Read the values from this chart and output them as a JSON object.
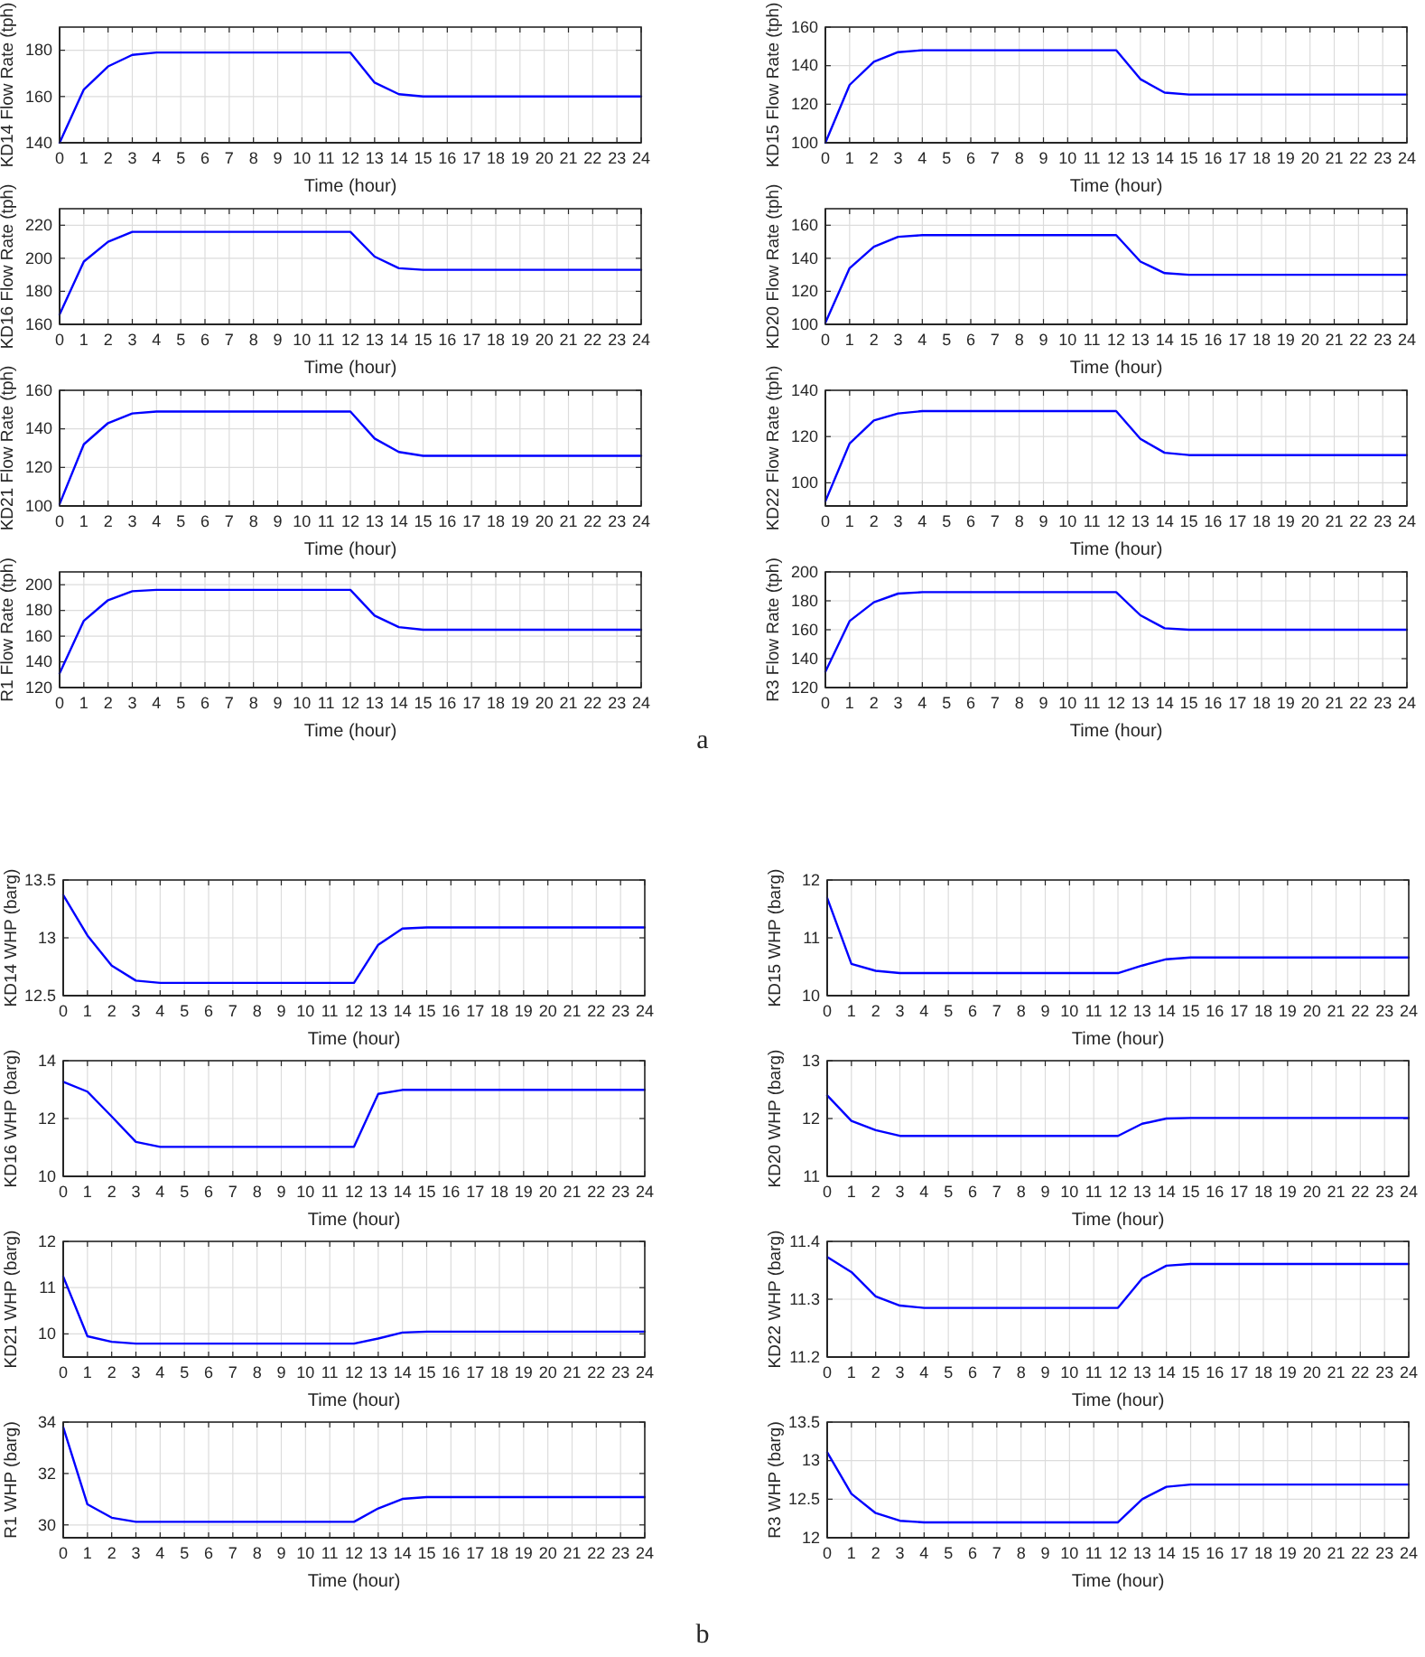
{
  "chart_data": [
    {
      "type": "line",
      "ylabel": "KD14 Flow Rate (tph)",
      "xlabel": "Time (hour)",
      "x": [
        0,
        1,
        2,
        3,
        4,
        5,
        6,
        7,
        8,
        9,
        10,
        11,
        12,
        13,
        14,
        15,
        16,
        17,
        18,
        19,
        20,
        21,
        22,
        23,
        24
      ],
      "xlim": [
        0,
        24
      ],
      "xticks": [
        0,
        1,
        2,
        3,
        4,
        5,
        6,
        7,
        8,
        9,
        10,
        11,
        12,
        13,
        14,
        15,
        16,
        17,
        18,
        19,
        20,
        21,
        22,
        23,
        24
      ],
      "ylim": [
        140,
        190
      ],
      "yticks": [
        140,
        160,
        180
      ],
      "grid": true,
      "series": [
        {
          "color": "#0000ff",
          "values": [
            140,
            163,
            173,
            178,
            179,
            179,
            179,
            179,
            179,
            179,
            179,
            179,
            179,
            166,
            161,
            160,
            160,
            160,
            160,
            160,
            160,
            160,
            160,
            160,
            160
          ]
        }
      ]
    },
    {
      "type": "line",
      "ylabel": "KD15 Flow Rate (tph)",
      "xlabel": "Time (hour)",
      "x": [
        0,
        1,
        2,
        3,
        4,
        5,
        6,
        7,
        8,
        9,
        10,
        11,
        12,
        13,
        14,
        15,
        16,
        17,
        18,
        19,
        20,
        21,
        22,
        23,
        24
      ],
      "xlim": [
        0,
        24
      ],
      "xticks": [
        0,
        1,
        2,
        3,
        4,
        5,
        6,
        7,
        8,
        9,
        10,
        11,
        12,
        13,
        14,
        15,
        16,
        17,
        18,
        19,
        20,
        21,
        22,
        23,
        24
      ],
      "ylim": [
        100,
        160
      ],
      "yticks": [
        100,
        120,
        140,
        160
      ],
      "grid": true,
      "series": [
        {
          "color": "#0000ff",
          "values": [
            100,
            130,
            142,
            147,
            148,
            148,
            148,
            148,
            148,
            148,
            148,
            148,
            148,
            133,
            126,
            125,
            125,
            125,
            125,
            125,
            125,
            125,
            125,
            125,
            125
          ]
        }
      ]
    },
    {
      "type": "line",
      "ylabel": "KD16 Flow Rate (tph)",
      "xlabel": "Time (hour)",
      "x": [
        0,
        1,
        2,
        3,
        4,
        5,
        6,
        7,
        8,
        9,
        10,
        11,
        12,
        13,
        14,
        15,
        16,
        17,
        18,
        19,
        20,
        21,
        22,
        23,
        24
      ],
      "xlim": [
        0,
        24
      ],
      "xticks": [
        0,
        1,
        2,
        3,
        4,
        5,
        6,
        7,
        8,
        9,
        10,
        11,
        12,
        13,
        14,
        15,
        16,
        17,
        18,
        19,
        20,
        21,
        22,
        23,
        24
      ],
      "ylim": [
        160,
        230
      ],
      "yticks": [
        160,
        180,
        200,
        220
      ],
      "grid": true,
      "series": [
        {
          "color": "#0000ff",
          "values": [
            166,
            198,
            210,
            216,
            216,
            216,
            216,
            216,
            216,
            216,
            216,
            216,
            216,
            201,
            194,
            193,
            193,
            193,
            193,
            193,
            193,
            193,
            193,
            193,
            193
          ]
        }
      ]
    },
    {
      "type": "line",
      "ylabel": "KD20 Flow Rate (tph)",
      "xlabel": "Time (hour)",
      "x": [
        0,
        1,
        2,
        3,
        4,
        5,
        6,
        7,
        8,
        9,
        10,
        11,
        12,
        13,
        14,
        15,
        16,
        17,
        18,
        19,
        20,
        21,
        22,
        23,
        24
      ],
      "xlim": [
        0,
        24
      ],
      "xticks": [
        0,
        1,
        2,
        3,
        4,
        5,
        6,
        7,
        8,
        9,
        10,
        11,
        12,
        13,
        14,
        15,
        16,
        17,
        18,
        19,
        20,
        21,
        22,
        23,
        24
      ],
      "ylim": [
        100,
        170
      ],
      "yticks": [
        100,
        120,
        140,
        160
      ],
      "grid": true,
      "series": [
        {
          "color": "#0000ff",
          "values": [
            101,
            134,
            147,
            153,
            154,
            154,
            154,
            154,
            154,
            154,
            154,
            154,
            154,
            138,
            131,
            130,
            130,
            130,
            130,
            130,
            130,
            130,
            130,
            130,
            130
          ]
        }
      ]
    },
    {
      "type": "line",
      "ylabel": "KD21 Flow Rate (tph)",
      "xlabel": "Time (hour)",
      "x": [
        0,
        1,
        2,
        3,
        4,
        5,
        6,
        7,
        8,
        9,
        10,
        11,
        12,
        13,
        14,
        15,
        16,
        17,
        18,
        19,
        20,
        21,
        22,
        23,
        24
      ],
      "xlim": [
        0,
        24
      ],
      "xticks": [
        0,
        1,
        2,
        3,
        4,
        5,
        6,
        7,
        8,
        9,
        10,
        11,
        12,
        13,
        14,
        15,
        16,
        17,
        18,
        19,
        20,
        21,
        22,
        23,
        24
      ],
      "ylim": [
        100,
        160
      ],
      "yticks": [
        100,
        120,
        140,
        160
      ],
      "grid": true,
      "series": [
        {
          "color": "#0000ff",
          "values": [
            101,
            132,
            143,
            148,
            149,
            149,
            149,
            149,
            149,
            149,
            149,
            149,
            149,
            135,
            128,
            126,
            126,
            126,
            126,
            126,
            126,
            126,
            126,
            126,
            126
          ]
        }
      ]
    },
    {
      "type": "line",
      "ylabel": "KD22 Flow Rate (tph)",
      "xlabel": "Time (hour)",
      "x": [
        0,
        1,
        2,
        3,
        4,
        5,
        6,
        7,
        8,
        9,
        10,
        11,
        12,
        13,
        14,
        15,
        16,
        17,
        18,
        19,
        20,
        21,
        22,
        23,
        24
      ],
      "xlim": [
        0,
        24
      ],
      "xticks": [
        0,
        1,
        2,
        3,
        4,
        5,
        6,
        7,
        8,
        9,
        10,
        11,
        12,
        13,
        14,
        15,
        16,
        17,
        18,
        19,
        20,
        21,
        22,
        23,
        24
      ],
      "ylim": [
        90,
        140
      ],
      "yticks": [
        100,
        120,
        140
      ],
      "grid": true,
      "series": [
        {
          "color": "#0000ff",
          "values": [
            92,
            117,
            127,
            130,
            131,
            131,
            131,
            131,
            131,
            131,
            131,
            131,
            131,
            119,
            113,
            112,
            112,
            112,
            112,
            112,
            112,
            112,
            112,
            112,
            112
          ]
        }
      ]
    },
    {
      "type": "line",
      "ylabel": "R1 Flow Rate (tph)",
      "xlabel": "Time (hour)",
      "x": [
        0,
        1,
        2,
        3,
        4,
        5,
        6,
        7,
        8,
        9,
        10,
        11,
        12,
        13,
        14,
        15,
        16,
        17,
        18,
        19,
        20,
        21,
        22,
        23,
        24
      ],
      "xlim": [
        0,
        24
      ],
      "xticks": [
        0,
        1,
        2,
        3,
        4,
        5,
        6,
        7,
        8,
        9,
        10,
        11,
        12,
        13,
        14,
        15,
        16,
        17,
        18,
        19,
        20,
        21,
        22,
        23,
        24
      ],
      "ylim": [
        120,
        210
      ],
      "yticks": [
        120,
        140,
        160,
        180,
        200
      ],
      "grid": true,
      "series": [
        {
          "color": "#0000ff",
          "values": [
            131,
            172,
            188,
            195,
            196,
            196,
            196,
            196,
            196,
            196,
            196,
            196,
            196,
            176,
            167,
            165,
            165,
            165,
            165,
            165,
            165,
            165,
            165,
            165,
            165
          ]
        }
      ]
    },
    {
      "type": "line",
      "ylabel": "R3 Flow Rate (tph)",
      "xlabel": "Time (hour)",
      "x": [
        0,
        1,
        2,
        3,
        4,
        5,
        6,
        7,
        8,
        9,
        10,
        11,
        12,
        13,
        14,
        15,
        16,
        17,
        18,
        19,
        20,
        21,
        22,
        23,
        24
      ],
      "xlim": [
        0,
        24
      ],
      "xticks": [
        0,
        1,
        2,
        3,
        4,
        5,
        6,
        7,
        8,
        9,
        10,
        11,
        12,
        13,
        14,
        15,
        16,
        17,
        18,
        19,
        20,
        21,
        22,
        23,
        24
      ],
      "ylim": [
        120,
        200
      ],
      "yticks": [
        120,
        140,
        160,
        180,
        200
      ],
      "grid": true,
      "annotations": [
        "a"
      ],
      "series": [
        {
          "color": "#0000ff",
          "values": [
            131,
            166,
            179,
            185,
            186,
            186,
            186,
            186,
            186,
            186,
            186,
            186,
            186,
            170,
            161,
            160,
            160,
            160,
            160,
            160,
            160,
            160,
            160,
            160,
            160
          ]
        }
      ]
    },
    {
      "type": "line",
      "ylabel": "KD14 WHP (barg)",
      "xlabel": "Time (hour)",
      "x": [
        0,
        1,
        2,
        3,
        4,
        5,
        6,
        7,
        8,
        9,
        10,
        11,
        12,
        13,
        14,
        15,
        16,
        17,
        18,
        19,
        20,
        21,
        22,
        23,
        24
      ],
      "xlim": [
        0,
        24
      ],
      "xticks": [
        0,
        1,
        2,
        3,
        4,
        5,
        6,
        7,
        8,
        9,
        10,
        11,
        12,
        13,
        14,
        15,
        16,
        17,
        18,
        19,
        20,
        21,
        22,
        23,
        24
      ],
      "ylim": [
        12.5,
        13.5
      ],
      "yticks": [
        12.5,
        13,
        13.5
      ],
      "grid": true,
      "series": [
        {
          "color": "#0000ff",
          "values": [
            13.37,
            13.02,
            12.76,
            12.63,
            12.61,
            12.61,
            12.61,
            12.61,
            12.61,
            12.61,
            12.61,
            12.61,
            12.61,
            12.94,
            13.08,
            13.09,
            13.09,
            13.09,
            13.09,
            13.09,
            13.09,
            13.09,
            13.09,
            13.09,
            13.09
          ]
        }
      ]
    },
    {
      "type": "line",
      "ylabel": "KD15 WHP (barg)",
      "xlabel": "Time (hour)",
      "x": [
        0,
        1,
        2,
        3,
        4,
        5,
        6,
        7,
        8,
        9,
        10,
        11,
        12,
        13,
        14,
        15,
        16,
        17,
        18,
        19,
        20,
        21,
        22,
        23,
        24
      ],
      "xlim": [
        0,
        24
      ],
      "xticks": [
        0,
        1,
        2,
        3,
        4,
        5,
        6,
        7,
        8,
        9,
        10,
        11,
        12,
        13,
        14,
        15,
        16,
        17,
        18,
        19,
        20,
        21,
        22,
        23,
        24
      ],
      "ylim": [
        10,
        12
      ],
      "yticks": [
        10,
        11,
        12
      ],
      "grid": true,
      "series": [
        {
          "color": "#0000ff",
          "values": [
            11.69,
            10.55,
            10.43,
            10.39,
            10.39,
            10.39,
            10.39,
            10.39,
            10.39,
            10.39,
            10.39,
            10.39,
            10.39,
            10.52,
            10.63,
            10.66,
            10.66,
            10.66,
            10.66,
            10.66,
            10.66,
            10.66,
            10.66,
            10.66,
            10.66
          ]
        }
      ]
    },
    {
      "type": "line",
      "ylabel": "KD16 WHP (barg)",
      "xlabel": "Time (hour)",
      "x": [
        0,
        1,
        2,
        3,
        4,
        5,
        6,
        7,
        8,
        9,
        10,
        11,
        12,
        13,
        14,
        15,
        16,
        17,
        18,
        19,
        20,
        21,
        22,
        23,
        24
      ],
      "xlim": [
        0,
        24
      ],
      "xticks": [
        0,
        1,
        2,
        3,
        4,
        5,
        6,
        7,
        8,
        9,
        10,
        11,
        12,
        13,
        14,
        15,
        16,
        17,
        18,
        19,
        20,
        21,
        22,
        23,
        24
      ],
      "ylim": [
        10,
        14
      ],
      "yticks": [
        10,
        12,
        14
      ],
      "grid": true,
      "series": [
        {
          "color": "#0000ff",
          "values": [
            13.27,
            12.93,
            12.07,
            11.19,
            11.02,
            11.02,
            11.02,
            11.02,
            11.02,
            11.02,
            11.02,
            11.02,
            11.02,
            12.85,
            12.99,
            12.99,
            12.99,
            12.99,
            12.99,
            12.99,
            12.99,
            12.99,
            12.99,
            12.99,
            12.99
          ]
        }
      ]
    },
    {
      "type": "line",
      "ylabel": "KD20 WHP (barg)",
      "xlabel": "Time (hour)",
      "x": [
        0,
        1,
        2,
        3,
        4,
        5,
        6,
        7,
        8,
        9,
        10,
        11,
        12,
        13,
        14,
        15,
        16,
        17,
        18,
        19,
        20,
        21,
        22,
        23,
        24
      ],
      "xlim": [
        0,
        24
      ],
      "xticks": [
        0,
        1,
        2,
        3,
        4,
        5,
        6,
        7,
        8,
        9,
        10,
        11,
        12,
        13,
        14,
        15,
        16,
        17,
        18,
        19,
        20,
        21,
        22,
        23,
        24
      ],
      "ylim": [
        11,
        13
      ],
      "yticks": [
        11,
        12,
        13
      ],
      "grid": true,
      "series": [
        {
          "color": "#0000ff",
          "values": [
            12.4,
            11.96,
            11.8,
            11.7,
            11.7,
            11.7,
            11.7,
            11.7,
            11.7,
            11.7,
            11.7,
            11.7,
            11.7,
            11.91,
            12,
            12.01,
            12.01,
            12.01,
            12.01,
            12.01,
            12.01,
            12.01,
            12.01,
            12.01,
            12.01
          ]
        }
      ]
    },
    {
      "type": "line",
      "ylabel": "KD21 WHP (barg)",
      "xlabel": "Time (hour)",
      "x": [
        0,
        1,
        2,
        3,
        4,
        5,
        6,
        7,
        8,
        9,
        10,
        11,
        12,
        13,
        14,
        15,
        16,
        17,
        18,
        19,
        20,
        21,
        22,
        23,
        24
      ],
      "xlim": [
        0,
        24
      ],
      "xticks": [
        0,
        1,
        2,
        3,
        4,
        5,
        6,
        7,
        8,
        9,
        10,
        11,
        12,
        13,
        14,
        15,
        16,
        17,
        18,
        19,
        20,
        21,
        22,
        23,
        24
      ],
      "ylim": [
        9.5,
        12
      ],
      "yticks": [
        10,
        11,
        12
      ],
      "grid": true,
      "series": [
        {
          "color": "#0000ff",
          "values": [
            11.24,
            9.95,
            9.83,
            9.79,
            9.79,
            9.79,
            9.79,
            9.79,
            9.79,
            9.79,
            9.79,
            9.79,
            9.79,
            9.9,
            10.03,
            10.05,
            10.05,
            10.05,
            10.05,
            10.05,
            10.05,
            10.05,
            10.05,
            10.05,
            10.05
          ]
        }
      ]
    },
    {
      "type": "line",
      "ylabel": "KD22 WHP (barg)",
      "xlabel": "Time (hour)",
      "x": [
        0,
        1,
        2,
        3,
        4,
        5,
        6,
        7,
        8,
        9,
        10,
        11,
        12,
        13,
        14,
        15,
        16,
        17,
        18,
        19,
        20,
        21,
        22,
        23,
        24
      ],
      "xlim": [
        0,
        24
      ],
      "xticks": [
        0,
        1,
        2,
        3,
        4,
        5,
        6,
        7,
        8,
        9,
        10,
        11,
        12,
        13,
        14,
        15,
        16,
        17,
        18,
        19,
        20,
        21,
        22,
        23,
        24
      ],
      "ylim": [
        11.2,
        11.4
      ],
      "yticks": [
        11.2,
        11.3,
        11.4
      ],
      "grid": true,
      "series": [
        {
          "color": "#0000ff",
          "values": [
            11.373,
            11.347,
            11.305,
            11.289,
            11.285,
            11.285,
            11.285,
            11.285,
            11.285,
            11.285,
            11.285,
            11.285,
            11.285,
            11.336,
            11.358,
            11.361,
            11.361,
            11.361,
            11.361,
            11.361,
            11.361,
            11.361,
            11.361,
            11.361,
            11.361
          ]
        }
      ]
    },
    {
      "type": "line",
      "ylabel": "R1 WHP (barg)",
      "xlabel": "Time (hour)",
      "x": [
        0,
        1,
        2,
        3,
        4,
        5,
        6,
        7,
        8,
        9,
        10,
        11,
        12,
        13,
        14,
        15,
        16,
        17,
        18,
        19,
        20,
        21,
        22,
        23,
        24
      ],
      "xlim": [
        0,
        24
      ],
      "xticks": [
        0,
        1,
        2,
        3,
        4,
        5,
        6,
        7,
        8,
        9,
        10,
        11,
        12,
        13,
        14,
        15,
        16,
        17,
        18,
        19,
        20,
        21,
        22,
        23,
        24
      ],
      "ylim": [
        29.5,
        34
      ],
      "yticks": [
        30,
        32,
        34
      ],
      "grid": true,
      "series": [
        {
          "color": "#0000ff",
          "values": [
            33.8,
            30.8,
            30.28,
            30.12,
            30.12,
            30.12,
            30.12,
            30.12,
            30.12,
            30.12,
            30.12,
            30.12,
            30.12,
            30.64,
            31.01,
            31.08,
            31.08,
            31.08,
            31.08,
            31.08,
            31.08,
            31.08,
            31.08,
            31.08,
            31.08
          ]
        }
      ]
    },
    {
      "type": "line",
      "ylabel": "R3 WHP (barg)",
      "xlabel": "Time (hour)",
      "x": [
        0,
        1,
        2,
        3,
        4,
        5,
        6,
        7,
        8,
        9,
        10,
        11,
        12,
        13,
        14,
        15,
        16,
        17,
        18,
        19,
        20,
        21,
        22,
        23,
        24
      ],
      "xlim": [
        0,
        24
      ],
      "xticks": [
        0,
        1,
        2,
        3,
        4,
        5,
        6,
        7,
        8,
        9,
        10,
        11,
        12,
        13,
        14,
        15,
        16,
        17,
        18,
        19,
        20,
        21,
        22,
        23,
        24
      ],
      "ylim": [
        12,
        13.5
      ],
      "yticks": [
        12,
        12.5,
        13,
        13.5
      ],
      "grid": true,
      "annotations": [
        "b"
      ],
      "series": [
        {
          "color": "#0000ff",
          "values": [
            13.11,
            12.57,
            12.32,
            12.22,
            12.2,
            12.2,
            12.2,
            12.2,
            12.2,
            12.2,
            12.2,
            12.2,
            12.2,
            12.5,
            12.66,
            12.69,
            12.69,
            12.69,
            12.69,
            12.69,
            12.69,
            12.69,
            12.69,
            12.69,
            12.69
          ]
        }
      ]
    }
  ]
}
